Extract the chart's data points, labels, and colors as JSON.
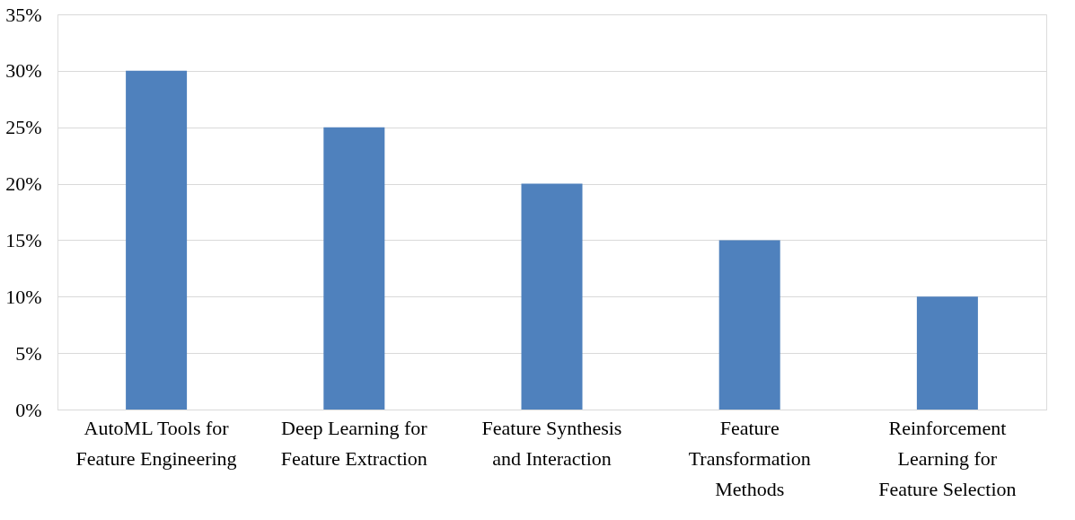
{
  "chart_data": {
    "type": "bar",
    "categories": [
      "AutoML Tools for Feature Engineering",
      "Deep Learning for Feature Extraction",
      "Feature Synthesis and Interaction",
      "Feature Transformation Methods",
      "Reinforcement Learning for Feature Selection"
    ],
    "values": [
      30,
      25,
      20,
      15,
      10
    ],
    "color": "#4f81bd",
    "ylim": [
      0,
      35
    ],
    "yticks": [
      {
        "value": 0,
        "label": "0%"
      },
      {
        "value": 5,
        "label": "5%"
      },
      {
        "value": 10,
        "label": "10%"
      },
      {
        "value": 15,
        "label": "15%"
      },
      {
        "value": 20,
        "label": "20%"
      },
      {
        "value": 25,
        "label": "25%"
      },
      {
        "value": 30,
        "label": "30%"
      },
      {
        "value": 35,
        "label": "35%"
      }
    ],
    "grid": "y"
  }
}
